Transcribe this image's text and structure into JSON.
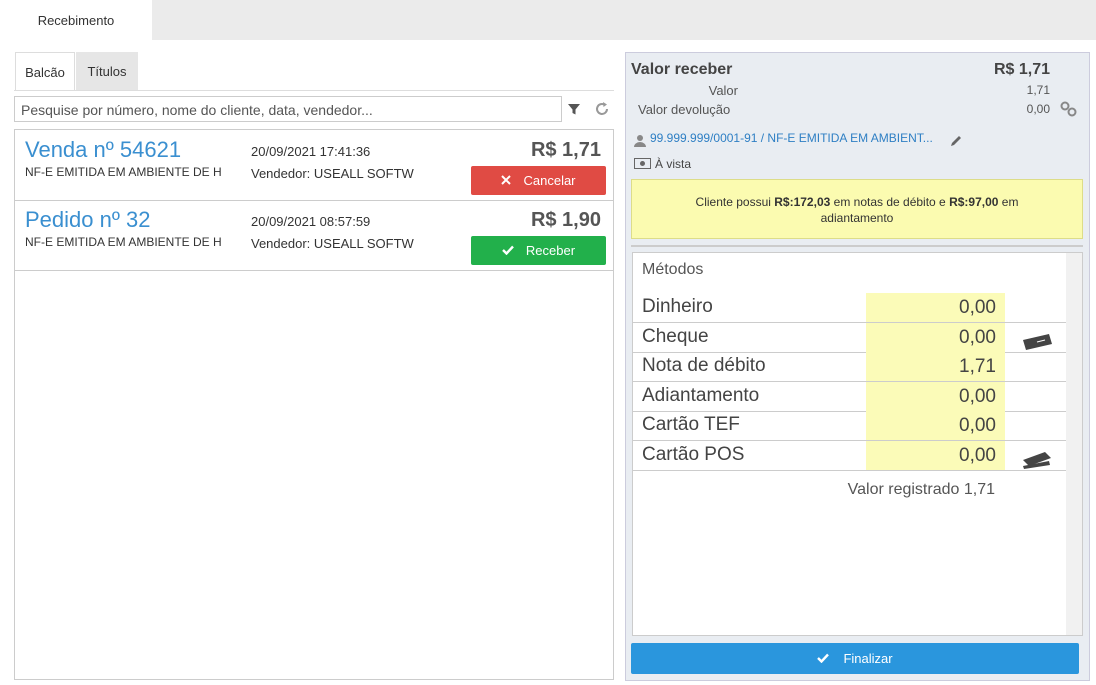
{
  "tabs": {
    "main": "Recebimento",
    "sub": [
      "Balcão",
      "Títulos"
    ]
  },
  "search": {
    "placeholder": "Pesquise por número, nome do cliente, data, vendedor..."
  },
  "orders": [
    {
      "title": "Venda nº 54621",
      "description": "NF-E EMITIDA EM AMBIENTE DE H",
      "date": "20/09/2021 17:41:36",
      "seller": "Vendedor: USEALL SOFTW",
      "amount": "R$ 1,71",
      "action": "Cancelar"
    },
    {
      "title": "Pedido nº 32",
      "description": "NF-E EMITIDA EM AMBIENTE DE H",
      "date": "20/09/2021 08:57:59",
      "seller": "Vendedor: USEALL SOFTW",
      "amount": "R$ 1,90",
      "action": "Receber"
    }
  ],
  "summary": {
    "title": "Valor receber",
    "total": "R$ 1,71",
    "value_label": "Valor",
    "value": "1,71",
    "return_label": "Valor devolução",
    "return_value": "0,00",
    "client": "99.999.999/0001-91 / NF-E EMITIDA EM AMBIENT...",
    "payment_term": "À vista"
  },
  "notice": {
    "text_1": "Cliente possui",
    "amount_1": "R$:172,03",
    "text_2": "em notas de débito e",
    "amount_2": "R$:97,00",
    "text_3": "em adiantamento"
  },
  "methods": {
    "title": "Métodos",
    "rows": [
      {
        "name": "Dinheiro",
        "value": "0,00"
      },
      {
        "name": "Cheque",
        "value": "0,00"
      },
      {
        "name": "Nota de débito",
        "value": "1,71"
      },
      {
        "name": "Adiantamento",
        "value": "0,00"
      },
      {
        "name": "Cartão TEF",
        "value": "0,00"
      },
      {
        "name": "Cartão POS",
        "value": "0,00"
      }
    ],
    "registered_label": "Valor registrado",
    "registered_value": "1,71"
  },
  "finish_button": "Finalizar"
}
